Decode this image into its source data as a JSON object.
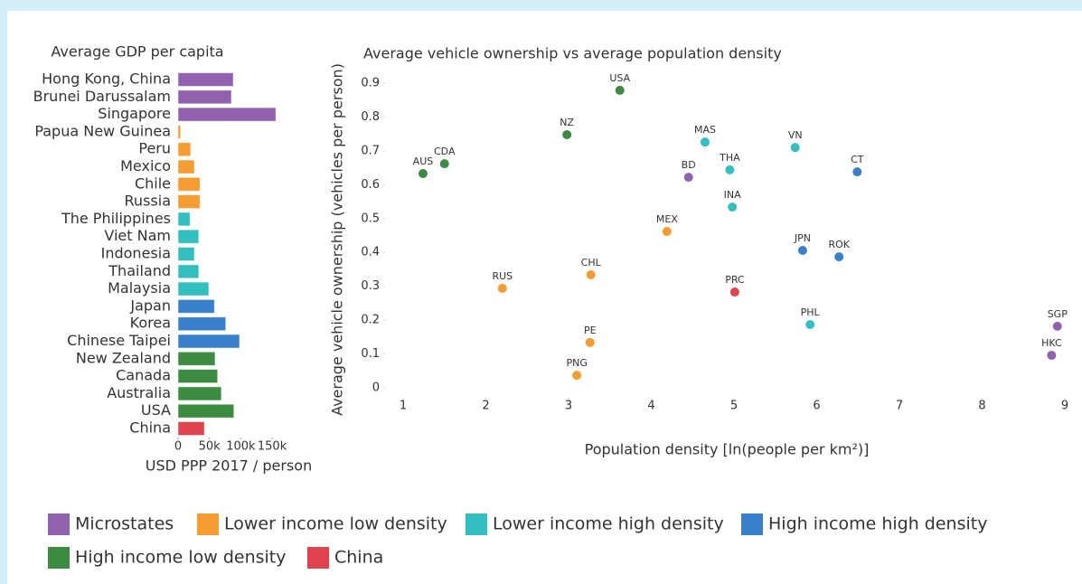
{
  "chart_data": [
    {
      "type": "bar",
      "orientation": "horizontal",
      "title": "Average GDP per capita",
      "x_label": "USD PPP 2017 / person",
      "categories": [
        "Hong Kong, China",
        "Brunei Darussalam",
        "Singapore",
        "Papua New Guinea",
        "Peru",
        "Mexico",
        "Chile",
        "Russia",
        "The Philippines",
        "Viet Nam",
        "Indonesia",
        "Thailand",
        "Malaysia",
        "Japan",
        "Korea",
        "Chinese Taipei",
        "New Zealand",
        "Canada",
        "Australia",
        "USA",
        "China"
      ],
      "values": [
        88000,
        85000,
        156000,
        4000,
        20000,
        26000,
        35000,
        35000,
        19000,
        33000,
        26000,
        33000,
        49000,
        58000,
        76000,
        98000,
        59000,
        63000,
        69000,
        89000,
        42000
      ],
      "colors": [
        "#9061ad",
        "#9061ad",
        "#9061ad",
        "#f59c32",
        "#f59c32",
        "#f59c32",
        "#f59c32",
        "#f59c32",
        "#33bfbf",
        "#33bfbf",
        "#33bfbf",
        "#33bfbf",
        "#33bfbf",
        "#3a7fc9",
        "#3a7fc9",
        "#3a7fc9",
        "#3d8b43",
        "#3d8b43",
        "#3d8b43",
        "#3d8b43",
        "#e0434f"
      ],
      "xlim": [
        0,
        160000
      ],
      "xticks": [
        0,
        {
          "value": 50000,
          "label": "50k"
        },
        {
          "value": 100000,
          "label": "100k"
        },
        {
          "value": 150000,
          "label": "150k"
        }
      ]
    },
    {
      "type": "scatter",
      "title": "Average vehicle ownership vs average population density",
      "x_label": "Population density [ln(people per km²)]",
      "y_label": "Average vehicle ownership (vehicles per person)",
      "xlim": [
        0.7,
        9.0
      ],
      "ylim": [
        -0.06,
        0.92
      ],
      "xticks": [
        1,
        2,
        3,
        4,
        5,
        6,
        7,
        8,
        9
      ],
      "yticks": [
        0,
        0.1,
        0.2,
        0.3,
        0.4,
        0.5,
        0.6,
        0.7,
        0.8,
        0.9
      ],
      "series": [
        {
          "name": "Microstates",
          "color": "#9061ad",
          "labels": [
            "BD",
            "SGP",
            "HKC"
          ],
          "x": [
            4.45,
            8.91,
            8.84
          ],
          "values": [
            0.622,
            0.182,
            0.096
          ]
        },
        {
          "name": "Lower income low density",
          "color": "#f59c32",
          "labels": [
            "RUS",
            "CHL",
            "PE",
            "PNG",
            "MEX"
          ],
          "x": [
            2.2,
            3.27,
            3.26,
            3.1,
            4.19
          ],
          "values": [
            0.294,
            0.334,
            0.134,
            0.037,
            0.462
          ]
        },
        {
          "name": "Lower income high density",
          "color": "#33bfbf",
          "labels": [
            "MAS",
            "THA",
            "INA",
            "VN",
            "PHL"
          ],
          "x": [
            4.65,
            4.95,
            4.98,
            5.74,
            5.92
          ],
          "values": [
            0.726,
            0.644,
            0.534,
            0.71,
            0.187
          ]
        },
        {
          "name": "High income high density",
          "color": "#3a7fc9",
          "labels": [
            "CT",
            "JPN",
            "ROK"
          ],
          "x": [
            6.49,
            5.83,
            6.27
          ],
          "values": [
            0.638,
            0.406,
            0.387
          ]
        },
        {
          "name": "High income low density",
          "color": "#3d8b43",
          "labels": [
            "AUS",
            "CDA",
            "NZ",
            "USA"
          ],
          "x": [
            1.24,
            1.5,
            2.98,
            3.62
          ],
          "values": [
            0.633,
            0.662,
            0.748,
            0.879
          ]
        },
        {
          "name": "China",
          "color": "#e0434f",
          "labels": [
            "PRC"
          ],
          "x": [
            5.01
          ],
          "values": [
            0.283
          ]
        }
      ]
    }
  ]
}
